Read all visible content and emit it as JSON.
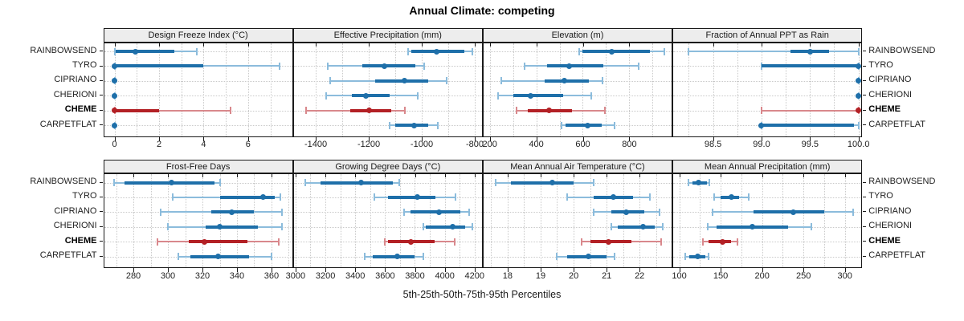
{
  "title": "Annual Climate: competing",
  "caption": "5th-25th-50th-75th-95th Percentiles",
  "sites": [
    "RAINBOWSEND",
    "TYRO",
    "CIPRIANO",
    "CHERIONI",
    "CHEME",
    "CARPETFLAT"
  ],
  "highlight_site": "CHEME",
  "percentile_keys": [
    "p5",
    "p25",
    "p50",
    "p75",
    "p95"
  ],
  "colors": {
    "blue_dark": "#1e6fa9",
    "blue_light": "#8cbcdc",
    "red_dark": "#b32025",
    "red_light": "#d9888c",
    "strip_bg": "#ededed",
    "grid": "#c9c9c9",
    "border": "#1a1a1a"
  },
  "chart_data": {
    "type": "scatter",
    "subtype": "percentile-interval-dotplot",
    "title": "Annual Climate: competing",
    "caption": "5th-25th-50th-75th-95th Percentiles",
    "categories": [
      "RAINBOWSEND",
      "TYRO",
      "CIPRIANO",
      "CHERIONI",
      "CHEME",
      "CARPETFLAT"
    ],
    "legend_position": "none",
    "grid": "dotted",
    "panels": [
      {
        "label": "Design Freeze Index (°C)",
        "row": 0,
        "col": 0,
        "xlim": [
          -0.47,
          7.98
        ],
        "tick_values": [
          0,
          2,
          4,
          6
        ],
        "tick_labels": [
          "0",
          "2",
          "4",
          "6"
        ],
        "percentiles": [
          [
            0,
            0.05,
            0.95,
            2.7,
            3.7
          ],
          [
            0,
            0,
            0,
            4.0,
            7.4
          ],
          [
            0,
            0,
            0,
            0,
            0
          ],
          [
            0,
            0,
            0,
            0,
            0
          ],
          [
            0,
            0,
            0,
            2.0,
            5.2
          ],
          [
            0,
            0,
            0,
            0,
            0
          ]
        ]
      },
      {
        "label": "Effective Precipitation (mm)",
        "row": 0,
        "col": 1,
        "xlim": [
          -1483,
          -773
        ],
        "tick_values": [
          -1400,
          -1200,
          -1000,
          -800
        ],
        "tick_labels": [
          "-1400",
          "-1200",
          "-1000",
          "-800"
        ],
        "percentiles": [
          [
            -1050,
            -1040,
            -945,
            -840,
            -810
          ],
          [
            -1355,
            -1225,
            -1140,
            -1025,
            -990
          ],
          [
            -1345,
            -1175,
            -1065,
            -975,
            -905
          ],
          [
            -1360,
            -1265,
            -1210,
            -1120,
            -1015
          ],
          [
            -1435,
            -1270,
            -1200,
            -1115,
            -1065
          ],
          [
            -1120,
            -1100,
            -1030,
            -975,
            -940
          ]
        ]
      },
      {
        "label": "Elevation (m)",
        "row": 0,
        "col": 2,
        "xlim": [
          173,
          982
        ],
        "tick_values": [
          200,
          400,
          600,
          800
        ],
        "tick_labels": [
          "200",
          "400",
          "600",
          "800"
        ],
        "percentiles": [
          [
            585,
            600,
            725,
            890,
            950
          ],
          [
            350,
            445,
            540,
            690,
            840
          ],
          [
            250,
            435,
            520,
            625,
            685
          ],
          [
            235,
            300,
            375,
            515,
            635
          ],
          [
            315,
            365,
            455,
            555,
            695
          ],
          [
            510,
            525,
            620,
            680,
            735
          ]
        ]
      },
      {
        "label": "Fraction of Annual PPT as Rain",
        "row": 0,
        "col": 3,
        "xlim": [
          98.09,
          100.03
        ],
        "tick_values": [
          98.5,
          99.0,
          99.5,
          100.0
        ],
        "tick_labels": [
          "98.5",
          "99.0",
          "99.5",
          "100.0"
        ],
        "percentiles": [
          [
            98.25,
            99.3,
            99.5,
            99.7,
            100
          ],
          [
            99.0,
            99.0,
            100,
            100,
            100
          ],
          [
            100,
            100,
            100,
            100,
            100
          ],
          [
            100,
            100,
            100,
            100,
            100
          ],
          [
            99.0,
            100,
            100,
            100,
            100
          ],
          [
            99.0,
            99.0,
            99.0,
            99.95,
            100
          ]
        ]
      },
      {
        "label": "Frost-Free Days",
        "row": 1,
        "col": 0,
        "xlim": [
          263,
          372
        ],
        "tick_values": [
          280,
          300,
          320,
          340,
          360
        ],
        "tick_labels": [
          "280",
          "300",
          "320",
          "340",
          "360"
        ],
        "percentiles": [
          [
            269,
            275,
            302,
            327,
            330
          ],
          [
            303,
            330,
            355,
            362,
            365
          ],
          [
            296,
            325,
            337,
            350,
            366
          ],
          [
            300,
            322,
            330,
            352,
            366
          ],
          [
            294,
            312,
            321,
            346,
            364
          ],
          [
            306,
            313,
            329,
            347,
            360
          ]
        ]
      },
      {
        "label": "Growing Degree Days (°C)",
        "row": 1,
        "col": 1,
        "xlim": [
          2988,
          4249
        ],
        "tick_values": [
          3000,
          3200,
          3400,
          3600,
          3800,
          4000,
          4200
        ],
        "tick_labels": [
          "3000",
          "3200",
          "3400",
          "3600",
          "3800",
          "4000",
          "4200"
        ],
        "percentiles": [
          [
            3065,
            3170,
            3440,
            3650,
            3695
          ],
          [
            3530,
            3620,
            3815,
            3935,
            4070
          ],
          [
            3730,
            3770,
            3960,
            4105,
            4165
          ],
          [
            3855,
            3875,
            4055,
            4135,
            4185
          ],
          [
            3600,
            3620,
            3775,
            3930,
            4065
          ],
          [
            3465,
            3520,
            3680,
            3795,
            3855
          ]
        ]
      },
      {
        "label": "Mean Annual Air Temperature (°C)",
        "row": 1,
        "col": 2,
        "xlim": [
          17.27,
          22.97
        ],
        "tick_values": [
          18,
          19,
          20,
          21,
          22
        ],
        "tick_labels": [
          "18",
          "19",
          "20",
          "21",
          "22"
        ],
        "percentiles": [
          [
            17.65,
            18.1,
            19.35,
            20.0,
            20.6
          ],
          [
            19.8,
            20.6,
            21.2,
            21.8,
            22.3
          ],
          [
            20.6,
            21.15,
            21.6,
            22.15,
            22.6
          ],
          [
            21.15,
            21.35,
            22.1,
            22.45,
            22.7
          ],
          [
            20.25,
            20.5,
            21.05,
            21.75,
            22.65
          ],
          [
            19.5,
            19.8,
            20.45,
            21.0,
            21.25
          ]
        ]
      },
      {
        "label": "Mean Annual Precipitation (mm)",
        "row": 1,
        "col": 3,
        "xlim": [
          92.7,
          320
        ],
        "tick_values": [
          100,
          150,
          200,
          250,
          300
        ],
        "tick_labels": [
          "100",
          "150",
          "200",
          "250",
          "300"
        ],
        "percentiles": [
          [
            111,
            116,
            123,
            133,
            136
          ],
          [
            142,
            150,
            163,
            172,
            184
          ],
          [
            140,
            190,
            238,
            275,
            310
          ],
          [
            134,
            145,
            188,
            231,
            260
          ],
          [
            129,
            135,
            152,
            163,
            170
          ],
          [
            107,
            112,
            122,
            131,
            135
          ]
        ]
      }
    ]
  }
}
